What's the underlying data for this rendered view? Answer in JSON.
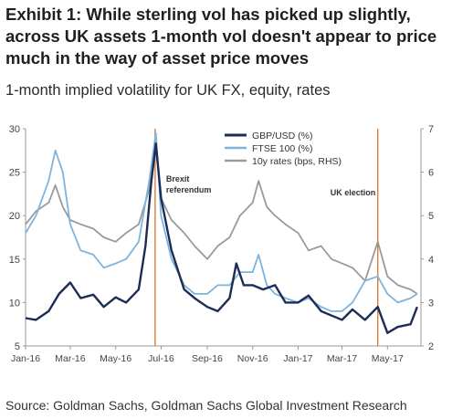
{
  "header": {
    "title": "Exhibit 1: While sterling vol has picked up slightly, across UK assets 1-month vol doesn't appear to price much in the way of asset price moves",
    "subtitle": "1-month implied volatility for UK FX, equity, rates"
  },
  "footer": {
    "source": "Source: Goldman Sachs, Goldman Sachs Global Investment Research"
  },
  "chart_data": {
    "type": "line",
    "x_range": [
      "2016-01-01",
      "2017-06-15"
    ],
    "x_ticks": [
      {
        "date": "2016-01-01",
        "label": "Jan-16"
      },
      {
        "date": "2016-03-01",
        "label": "Mar-16"
      },
      {
        "date": "2016-05-01",
        "label": "May-16"
      },
      {
        "date": "2016-07-01",
        "label": "Jul-16"
      },
      {
        "date": "2016-09-01",
        "label": "Sep-16"
      },
      {
        "date": "2016-11-01",
        "label": "Nov-16"
      },
      {
        "date": "2017-01-01",
        "label": "Jan-17"
      },
      {
        "date": "2017-03-01",
        "label": "Mar-17"
      },
      {
        "date": "2017-05-01",
        "label": "May-17"
      }
    ],
    "y_left": {
      "min": 5,
      "max": 30,
      "ticks": [
        "5",
        "10",
        "15",
        "20",
        "25",
        "30"
      ]
    },
    "y_right": {
      "min": 2,
      "max": 7,
      "ticks": [
        "2",
        "3",
        "4",
        "5",
        "6",
        "7"
      ]
    },
    "grid": false,
    "legend_position": "top-center",
    "annotations": [
      {
        "date": "2016-06-23",
        "label_lines": [
          "Brexit",
          "referendum"
        ],
        "color": "#e07b39"
      },
      {
        "date": "2017-04-18",
        "label_lines": [
          "UK election"
        ],
        "color": "#e07b39"
      }
    ],
    "series": [
      {
        "name": "GBP/USD (%)",
        "axis": "left",
        "color": "#1b2d57",
        "points": [
          [
            "2016-01-01",
            8.2
          ],
          [
            "2016-01-15",
            8.0
          ],
          [
            "2016-02-01",
            9.0
          ],
          [
            "2016-02-15",
            11.0
          ],
          [
            "2016-03-01",
            12.3
          ],
          [
            "2016-03-15",
            10.5
          ],
          [
            "2016-04-01",
            10.9
          ],
          [
            "2016-04-15",
            9.5
          ],
          [
            "2016-05-01",
            10.6
          ],
          [
            "2016-05-15",
            10.0
          ],
          [
            "2016-06-01",
            11.5
          ],
          [
            "2016-06-10",
            16.5
          ],
          [
            "2016-06-18",
            24.0
          ],
          [
            "2016-06-24",
            28.3
          ],
          [
            "2016-07-01",
            22.0
          ],
          [
            "2016-07-15",
            16.0
          ],
          [
            "2016-08-01",
            11.5
          ],
          [
            "2016-08-15",
            10.5
          ],
          [
            "2016-09-01",
            9.5
          ],
          [
            "2016-09-15",
            9.0
          ],
          [
            "2016-10-01",
            10.5
          ],
          [
            "2016-10-10",
            14.5
          ],
          [
            "2016-10-20",
            12.0
          ],
          [
            "2016-11-01",
            12.0
          ],
          [
            "2016-11-15",
            11.5
          ],
          [
            "2016-12-01",
            12.0
          ],
          [
            "2016-12-15",
            10.0
          ],
          [
            "2017-01-01",
            10.0
          ],
          [
            "2017-01-15",
            10.8
          ],
          [
            "2017-02-01",
            9.0
          ],
          [
            "2017-02-15",
            8.5
          ],
          [
            "2017-03-01",
            8.0
          ],
          [
            "2017-03-15",
            9.2
          ],
          [
            "2017-04-01",
            8.0
          ],
          [
            "2017-04-18",
            9.5
          ],
          [
            "2017-05-01",
            6.5
          ],
          [
            "2017-05-15",
            7.2
          ],
          [
            "2017-06-01",
            7.5
          ],
          [
            "2017-06-10",
            9.5
          ]
        ]
      },
      {
        "name": "FTSE 100 (%)",
        "axis": "left",
        "color": "#7fb3dc",
        "points": [
          [
            "2016-01-01",
            18.0
          ],
          [
            "2016-01-15",
            20.0
          ],
          [
            "2016-02-01",
            24.0
          ],
          [
            "2016-02-10",
            27.5
          ],
          [
            "2016-02-20",
            25.0
          ],
          [
            "2016-03-01",
            19.0
          ],
          [
            "2016-03-15",
            16.0
          ],
          [
            "2016-04-01",
            15.5
          ],
          [
            "2016-04-15",
            14.0
          ],
          [
            "2016-05-01",
            14.5
          ],
          [
            "2016-05-15",
            15.0
          ],
          [
            "2016-06-01",
            17.0
          ],
          [
            "2016-06-15",
            24.0
          ],
          [
            "2016-06-24",
            29.5
          ],
          [
            "2016-07-01",
            20.0
          ],
          [
            "2016-07-15",
            15.0
          ],
          [
            "2016-08-01",
            12.0
          ],
          [
            "2016-08-15",
            11.0
          ],
          [
            "2016-09-01",
            11.0
          ],
          [
            "2016-09-15",
            12.0
          ],
          [
            "2016-10-01",
            12.0
          ],
          [
            "2016-10-15",
            13.5
          ],
          [
            "2016-11-01",
            13.5
          ],
          [
            "2016-11-09",
            15.5
          ],
          [
            "2016-11-20",
            12.0
          ],
          [
            "2016-12-01",
            11.0
          ],
          [
            "2016-12-15",
            10.5
          ],
          [
            "2017-01-01",
            10.0
          ],
          [
            "2017-01-15",
            10.5
          ],
          [
            "2017-02-01",
            9.5
          ],
          [
            "2017-02-15",
            9.0
          ],
          [
            "2017-03-01",
            9.0
          ],
          [
            "2017-03-15",
            10.0
          ],
          [
            "2017-04-01",
            12.5
          ],
          [
            "2017-04-18",
            13.0
          ],
          [
            "2017-05-01",
            11.0
          ],
          [
            "2017-05-15",
            10.0
          ],
          [
            "2017-06-01",
            10.5
          ],
          [
            "2017-06-10",
            11.0
          ]
        ]
      },
      {
        "name": "10y rates (bps, RHS)",
        "axis": "right",
        "color": "#9a9a9a",
        "points": [
          [
            "2016-01-01",
            4.8
          ],
          [
            "2016-01-15",
            5.1
          ],
          [
            "2016-02-01",
            5.3
          ],
          [
            "2016-02-10",
            5.7
          ],
          [
            "2016-02-20",
            5.2
          ],
          [
            "2016-03-01",
            4.9
          ],
          [
            "2016-03-15",
            4.8
          ],
          [
            "2016-04-01",
            4.7
          ],
          [
            "2016-04-15",
            4.5
          ],
          [
            "2016-05-01",
            4.4
          ],
          [
            "2016-05-15",
            4.6
          ],
          [
            "2016-06-01",
            4.8
          ],
          [
            "2016-06-15",
            5.6
          ],
          [
            "2016-06-24",
            6.6
          ],
          [
            "2016-07-01",
            5.4
          ],
          [
            "2016-07-15",
            4.9
          ],
          [
            "2016-08-01",
            4.6
          ],
          [
            "2016-08-15",
            4.3
          ],
          [
            "2016-09-01",
            4.0
          ],
          [
            "2016-09-15",
            4.3
          ],
          [
            "2016-10-01",
            4.5
          ],
          [
            "2016-10-15",
            5.0
          ],
          [
            "2016-11-01",
            5.3
          ],
          [
            "2016-11-09",
            5.8
          ],
          [
            "2016-11-20",
            5.2
          ],
          [
            "2016-12-01",
            5.0
          ],
          [
            "2016-12-15",
            4.8
          ],
          [
            "2017-01-01",
            4.6
          ],
          [
            "2017-01-15",
            4.2
          ],
          [
            "2017-02-01",
            4.3
          ],
          [
            "2017-02-15",
            4.0
          ],
          [
            "2017-03-01",
            3.9
          ],
          [
            "2017-03-15",
            3.8
          ],
          [
            "2017-04-01",
            3.5
          ],
          [
            "2017-04-18",
            4.4
          ],
          [
            "2017-05-01",
            3.6
          ],
          [
            "2017-05-15",
            3.4
          ],
          [
            "2017-06-01",
            3.3
          ],
          [
            "2017-06-10",
            3.2
          ]
        ]
      }
    ]
  }
}
